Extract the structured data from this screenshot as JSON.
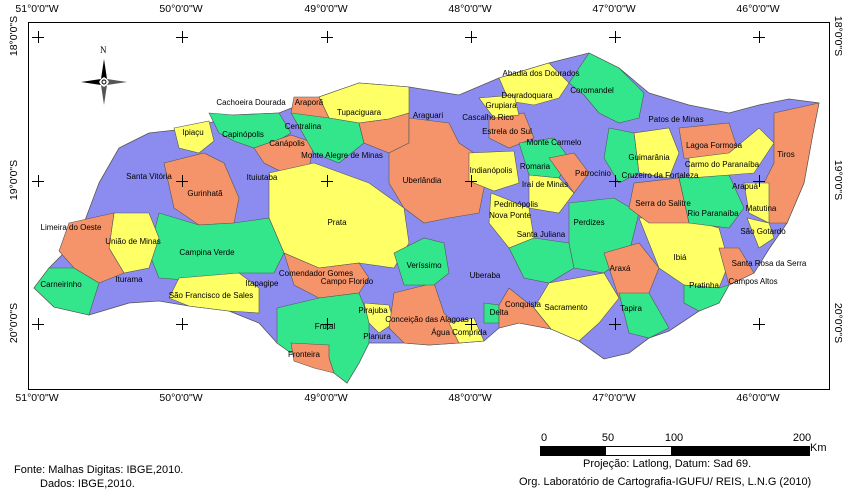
{
  "axes": {
    "lon_labels": [
      "51°0'0\"W",
      "50°0'0\"W",
      "49°0'0\"W",
      "48°0'0\"W",
      "47°0'0\"W",
      "46°0'0\"W"
    ],
    "lat_labels": [
      "18°0'0\"S",
      "19°0'0\"S",
      "20°0'0\"S"
    ]
  },
  "north_arrow": {
    "label": "N"
  },
  "colors": {
    "blue": "#8c8cf0",
    "yellow": "#ffff66",
    "green": "#33e68c",
    "salmon": "#f5946a"
  },
  "municipalities": [
    "Abadia dos Dourados",
    "Douradoquara",
    "Coromandel",
    "Grupiara",
    "Cascalho Rico",
    "Estrela do Sul",
    "Araguari",
    "Tupaciguara",
    "Araporã",
    "Cachoeira Dourada",
    "Ipiaçu",
    "Capinópolis",
    "Centralina",
    "Canápolis",
    "Monte Alegre de Minas",
    "Santa Vitória",
    "Gurinhatã",
    "Ituiutaba",
    "Uberlândia",
    "Indianópolis",
    "Monte Carmelo",
    "Romaria",
    "Iraí de Minas",
    "Patrocínio",
    "Cruzeiro da Fortaleza",
    "Guimarânia",
    "Patos de Minas",
    "Lagoa Formosa",
    "Carmo do Paranaíba",
    "Tiros",
    "Arapuá",
    "Matutina",
    "Serra do Salitre",
    "Rio Paranaíba",
    "São Gotardo",
    "Limeira do Oeste",
    "União de Minas",
    "Campina Verde",
    "Prata",
    "Nova Ponte",
    "Pedrinópolis",
    "Santa Juliana",
    "Perdizes",
    "Iturama",
    "Carneirinho",
    "São Francisco de Sales",
    "Itapagipe",
    "Comendador Gomes",
    "Campo Florido",
    "Veríssimo",
    "Uberaba",
    "Ibiá",
    "Araxá",
    "Santa Rosa da Serra",
    "Pratinha",
    "Campos Altos",
    "Tapira",
    "Sacramento",
    "Conquista",
    "Delta",
    "Pirajuba",
    "Conceição das Alagoas",
    "Água Comprida",
    "Frutal",
    "Planura",
    "Fronteira"
  ],
  "scale": {
    "ticks": [
      "0",
      "50",
      "100",
      "200"
    ],
    "unit": "Km"
  },
  "footer": {
    "projection": "Projeção: Latlong, Datum: Sad 69.",
    "org": "Org. Laboratório de Cartografia-IGUFU/ REIS, L.N.G (2010)",
    "source": "Fonte: Malhas Digitas: IBGE,2010.",
    "data": "Dados: IBGE,2010."
  }
}
